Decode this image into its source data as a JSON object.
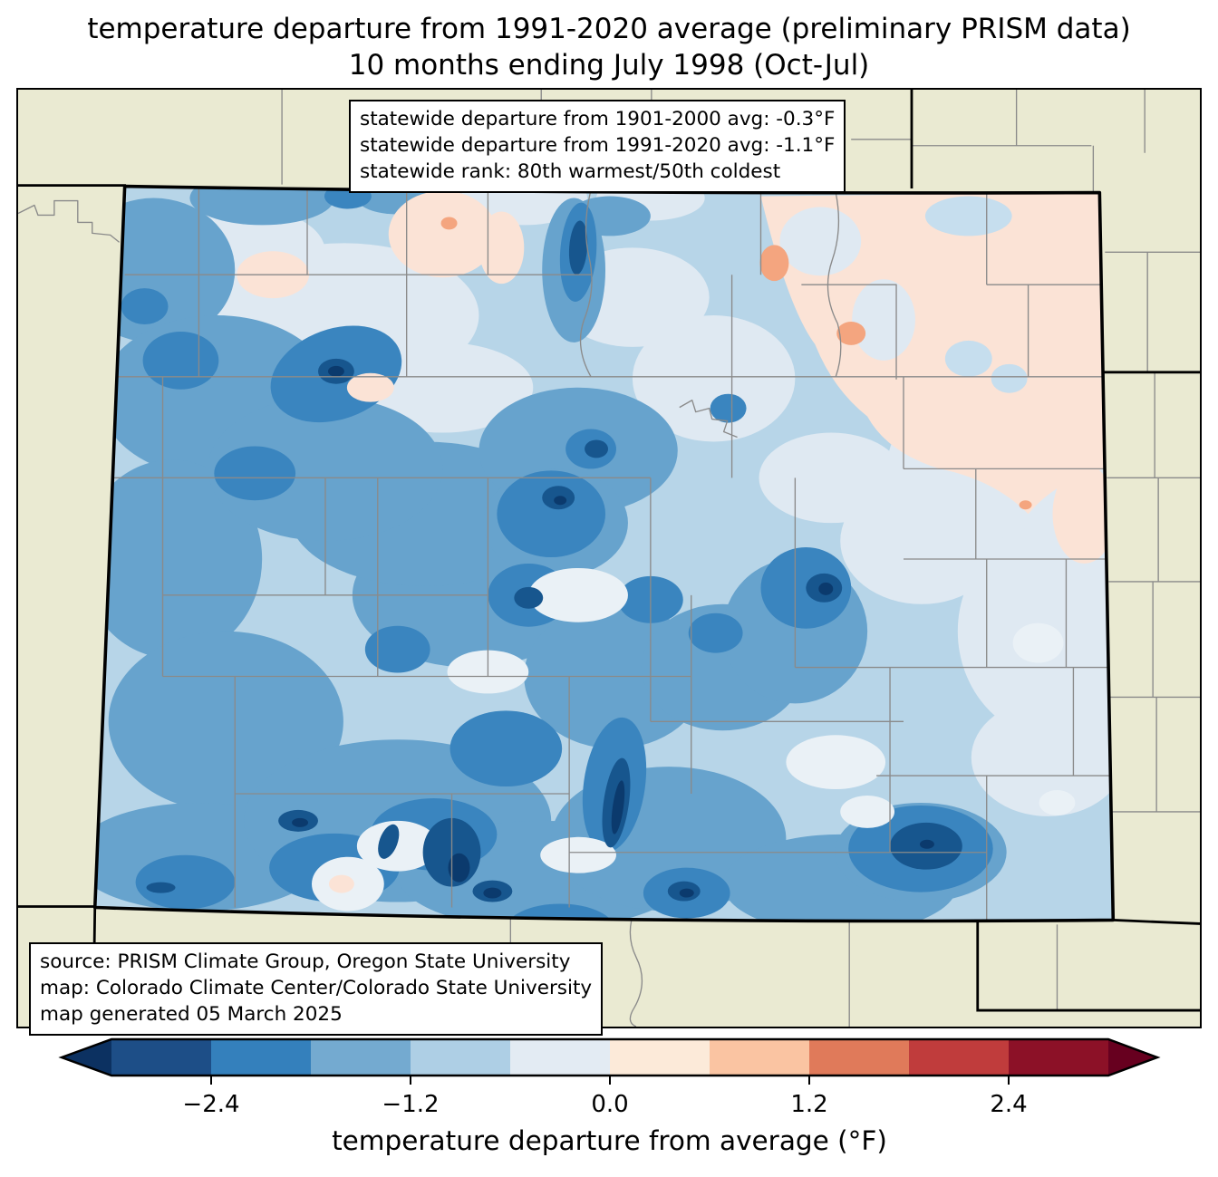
{
  "title": {
    "line1": "temperature departure from 1991-2020 average (preliminary PRISM data)",
    "line2": "10 months ending July 1998 (Oct-Jul)"
  },
  "stats_box": {
    "line1": "statewide departure from 1901-2000 avg: -0.3°F",
    "line2": "statewide departure from 1991-2020 avg: -1.1°F",
    "line3": "statewide rank: 80th warmest/50th coldest"
  },
  "source_box": {
    "line1": "source: PRISM Climate Group, Oregon State University",
    "line2": "map: Colorado Climate Center/Colorado State University",
    "line3": "map generated 05 March 2025"
  },
  "colorbar": {
    "label": "temperature departure from average (°F)",
    "range": [
      -3.0,
      3.0
    ],
    "interval": 0.6,
    "ticks": [
      {
        "value": -2.4,
        "label": "−2.4"
      },
      {
        "value": -1.2,
        "label": "−1.2"
      },
      {
        "value": 0.0,
        "label": "0.0"
      },
      {
        "value": 1.2,
        "label": "1.2"
      },
      {
        "value": 2.4,
        "label": "2.4"
      }
    ],
    "segment_colors": [
      "#1d4e87",
      "#3480bc",
      "#74aad0",
      "#aecfe5",
      "#e3ebf3",
      "#fcead9",
      "#fac4a2",
      "#e07a5a",
      "#c03c3c",
      "#8c1127"
    ],
    "under_color": "#0c3161",
    "over_color": "#67001f"
  },
  "map": {
    "region": "Colorado",
    "palette": {
      "base": "#b7d5e8",
      "pale": "#dfe9f2",
      "pale2": "#eaf1f6",
      "mid": "#67a3cd",
      "deep": "#3a85bf",
      "navy": "#17568e",
      "darkest": "#0b3a6d",
      "pink": "#fbe3d6",
      "salmon": "#f4a57f",
      "lightpatch": "#c6deee",
      "beige": "#eaead2",
      "county": "#8a8a8a",
      "border": "#000000"
    }
  },
  "chart_data": {
    "type": "heatmap",
    "title": "temperature departure from 1991-2020 average (preliminary PRISM data)",
    "subtitle": "10 months ending July 1998 (Oct-Jul)",
    "region": "Colorado",
    "variable": "temperature departure from average (°F)",
    "colorbar": {
      "label": "temperature departure from average (°F)",
      "tick_values": [
        -2.4,
        -1.2,
        0.0,
        1.2,
        2.4
      ],
      "range": [
        -3.0,
        3.0
      ],
      "interval": 0.6,
      "extend": "both"
    },
    "statewide_values": {
      "departure_from_1901_2000_avg_F": -0.3,
      "departure_from_1991_2020_avg_F": -1.1,
      "rank": "80th warmest/50th coldest"
    },
    "pattern_summary": "Most of western, central and southern Colorado below average (blues, locally < -2.4°F in mountain cores); northeast corner slightly above average (pale pink, small spots > 0.6°F)."
  }
}
